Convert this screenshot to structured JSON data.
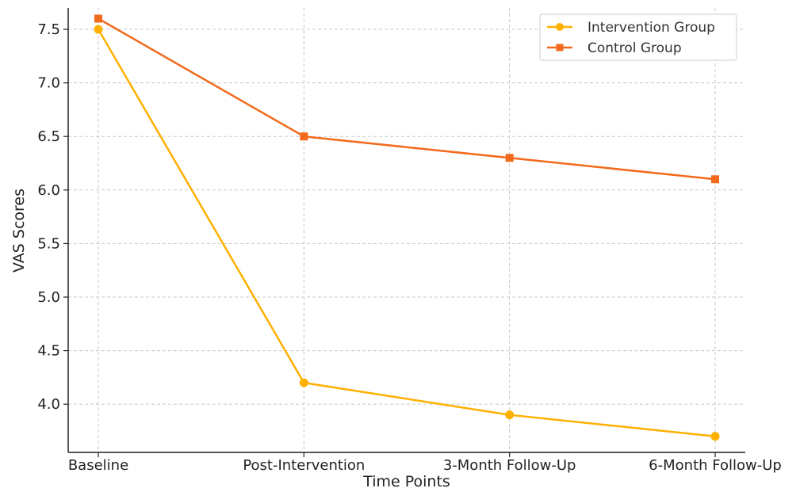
{
  "chart_data": {
    "type": "line",
    "title": "",
    "xlabel": "Time Points",
    "ylabel": "VAS Scores",
    "categories": [
      "Baseline",
      "Post-Intervention",
      "3-Month Follow-Up",
      "6-Month Follow-Up"
    ],
    "series": [
      {
        "name": "Intervention Group",
        "values": [
          7.5,
          4.2,
          3.9,
          3.7
        ],
        "color": "#FFB000",
        "marker": "circle"
      },
      {
        "name": "Control Group",
        "values": [
          7.6,
          6.5,
          6.3,
          6.1
        ],
        "color": "#F26A1B",
        "marker": "square"
      }
    ],
    "yticks": [
      "4.0",
      "4.5",
      "5.0",
      "5.5",
      "6.0",
      "6.5",
      "7.0",
      "7.5"
    ],
    "ylim": [
      3.55,
      7.7
    ],
    "grid": true,
    "legend_position": "top-right"
  }
}
